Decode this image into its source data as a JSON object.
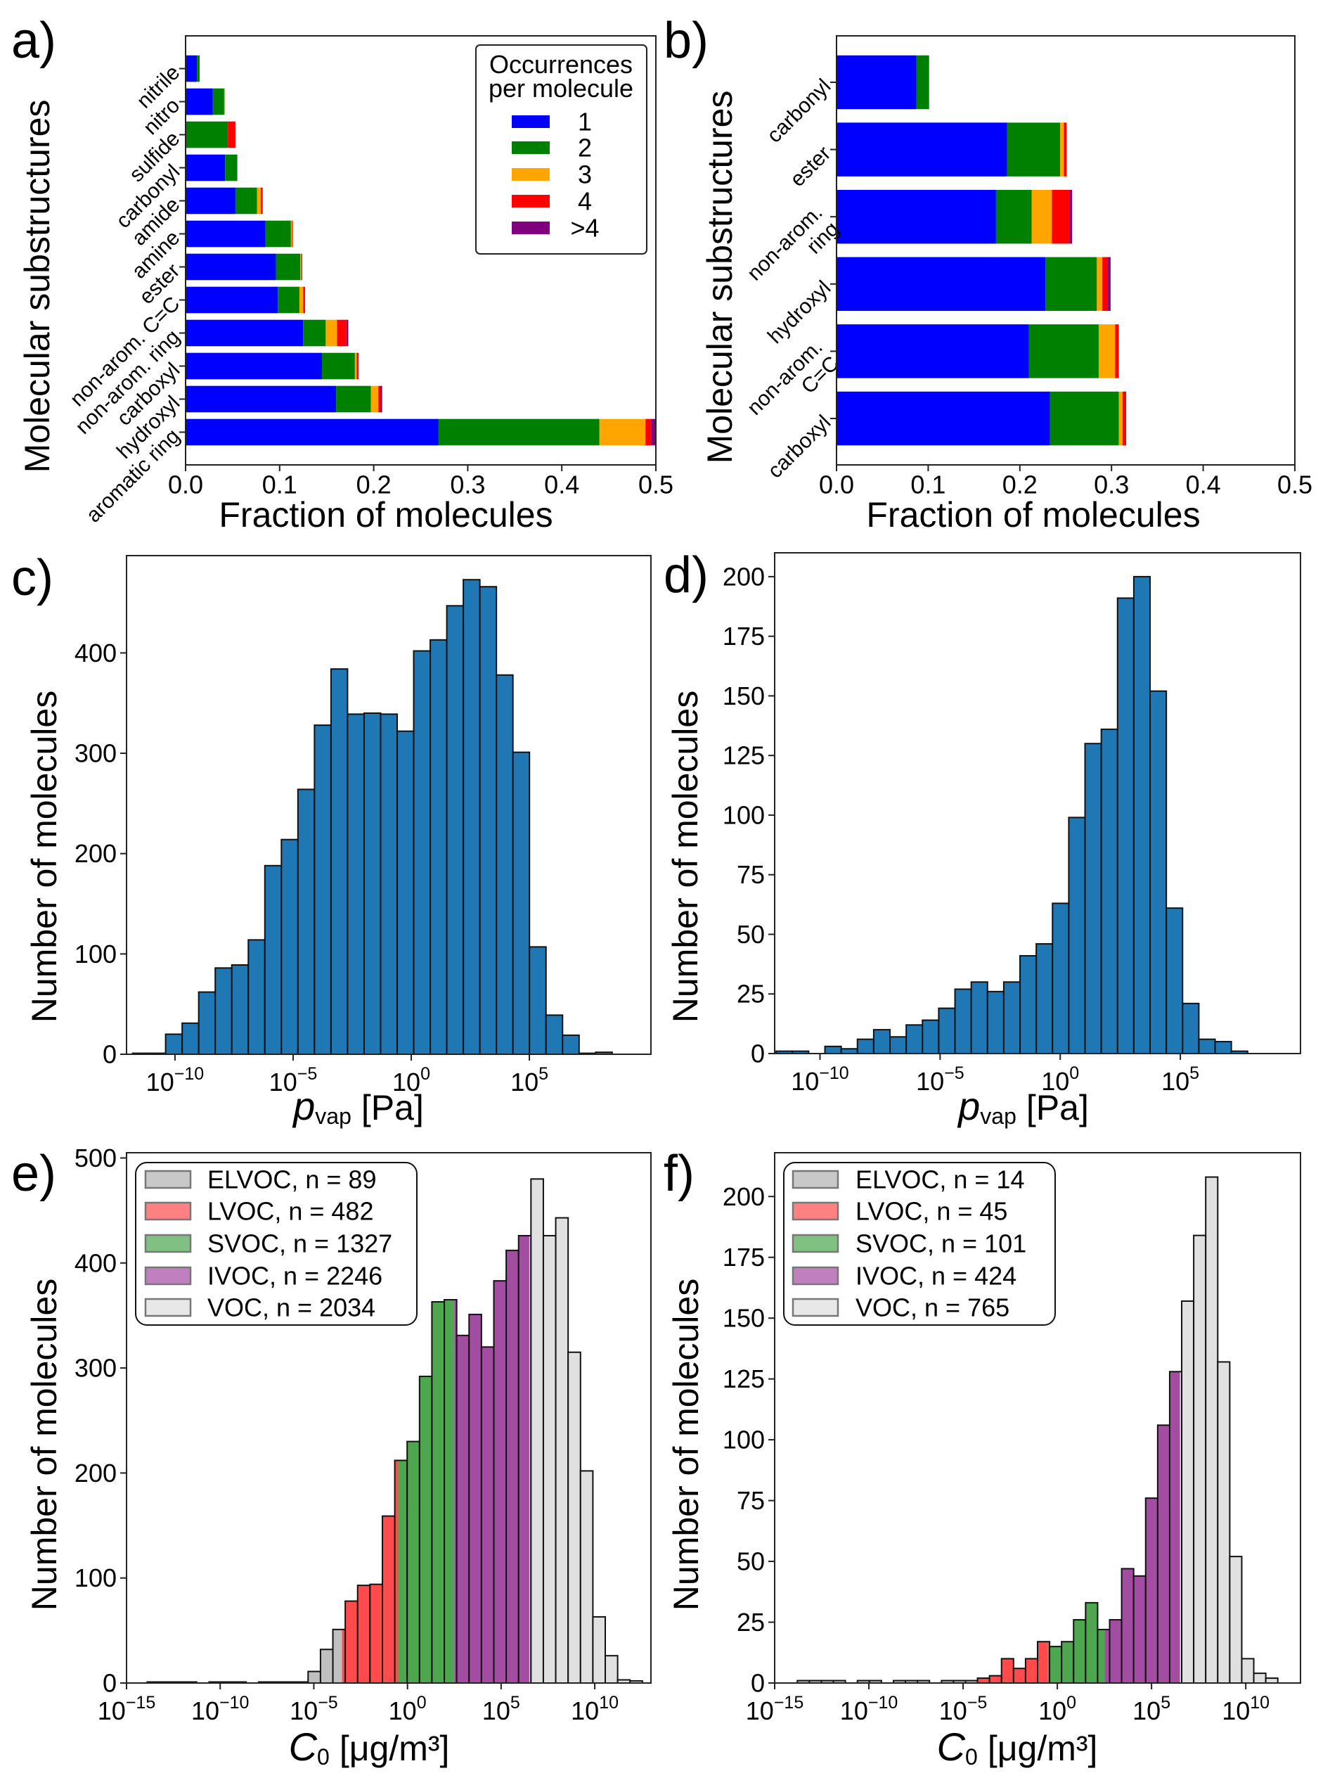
{
  "panel_labels": {
    "a": "a)",
    "b": "b)",
    "c": "c)",
    "d": "d)",
    "e": "e)",
    "f": "f)"
  },
  "chart_data": [
    {
      "panel": "a",
      "type": "bar",
      "orientation": "horizontal",
      "stacked": true,
      "xlabel": "Fraction of molecules",
      "ylabel": "Molecular substructures",
      "xlim": [
        0,
        0.5
      ],
      "xticks": [
        0,
        0.1,
        0.2,
        0.3,
        0.4,
        0.5
      ],
      "xtick_labels": [
        "0.0",
        "0.1",
        "0.2",
        "0.3",
        "0.4",
        "0.5"
      ],
      "grid": false,
      "categories": [
        "nitrile",
        "nitro",
        "sulfide",
        "carbonyl",
        "amide",
        "amine",
        "ester",
        "non-arom.\nC=C",
        "non-arom. ring",
        "carboxyl",
        "hydroxyl",
        "aromatic ring"
      ],
      "legend": {
        "title_lines": [
          "Occurrences",
          "per molecule"
        ],
        "position": "top-right"
      },
      "series": [
        {
          "name": "1",
          "color": "#0000ff",
          "values": [
            0.012,
            0.029,
            0,
            0.042,
            0.053,
            0.085,
            0.096,
            0.098,
            0.125,
            0.145,
            0.16,
            0.269
          ]
        },
        {
          "name": "2",
          "color": "#008000",
          "values": [
            0.003,
            0.012,
            0.045,
            0.013,
            0.023,
            0.027,
            0.026,
            0.023,
            0.024,
            0.035,
            0.037,
            0.171
          ]
        },
        {
          "name": "3",
          "color": "#ffa500",
          "values": [
            0,
            0.001,
            0,
            0,
            0.004,
            0.001,
            0.001,
            0.004,
            0.012,
            0.002,
            0.008,
            0.049
          ]
        },
        {
          "name": "4",
          "color": "#ff0000",
          "values": [
            0,
            0,
            0.008,
            0,
            0.002,
            0.001,
            0.001,
            0.002,
            0.01,
            0.002,
            0.002,
            0.006
          ]
        },
        {
          "name": ">4",
          "color": "#800080",
          "values": [
            0,
            0,
            0,
            0,
            0,
            0,
            0,
            0,
            0.002,
            0,
            0.002,
            0.005
          ]
        }
      ]
    },
    {
      "panel": "b",
      "type": "bar",
      "orientation": "horizontal",
      "stacked": true,
      "xlabel": "Fraction of molecules",
      "ylabel": "Molecular substructures",
      "xlim": [
        0,
        0.5
      ],
      "xticks": [
        0,
        0.1,
        0.2,
        0.3,
        0.4,
        0.5
      ],
      "xtick_labels": [
        "0.0",
        "0.1",
        "0.2",
        "0.3",
        "0.4",
        "0.5"
      ],
      "grid": false,
      "categories": [
        "carbonyl",
        "ester",
        "non-arom.\nring",
        "hydroxyl",
        "non-arom.\nC=C",
        "carboxyl"
      ],
      "series": [
        {
          "color": "#0000ff",
          "values": [
            0.087,
            0.186,
            0.174,
            0.228,
            0.21,
            0.233
          ]
        },
        {
          "color": "#008000",
          "values": [
            0.014,
            0.058,
            0.039,
            0.056,
            0.076,
            0.075
          ]
        },
        {
          "color": "#ffa500",
          "values": [
            0,
            0.004,
            0.022,
            0.006,
            0.018,
            0.004
          ]
        },
        {
          "color": "#ff0000",
          "values": [
            0,
            0.003,
            0.019,
            0.006,
            0.004,
            0.004
          ]
        },
        {
          "color": "#800080",
          "values": [
            0,
            0,
            0.003,
            0.003,
            0,
            0
          ]
        }
      ]
    },
    {
      "panel": "c",
      "type": "bar",
      "subtype": "histogram",
      "x_scale": "log",
      "xlabel": {
        "symbol": "p",
        "subscript": "vap",
        "unit": "[Pa]"
      },
      "ylabel": "Number of molecules",
      "xlim": [
        8.9e-13,
        14000000000.0
      ],
      "ylim": [
        0,
        497
      ],
      "xtick_exponents": [
        -10,
        -5,
        0,
        5
      ],
      "tick_base": "10",
      "yticks": [
        0,
        100,
        200,
        300,
        400
      ],
      "bin_range": [
        1.6e-12,
        320000000.0
      ],
      "bin_spacing": "log",
      "color": "#1f77b4",
      "counts": [
        1,
        1,
        20,
        31,
        62,
        86,
        89,
        114,
        188,
        214,
        264,
        328,
        384,
        339,
        340,
        339,
        322,
        402,
        413,
        447,
        473,
        466,
        378,
        301,
        107,
        39,
        19,
        1,
        2
      ]
    },
    {
      "panel": "d",
      "type": "bar",
      "subtype": "histogram",
      "x_scale": "log",
      "xlabel": {
        "symbol": "p",
        "subscript": "vap",
        "unit": "[Pa]"
      },
      "ylabel": "Number of molecules",
      "xlim": [
        1.3e-12,
        10000000000.0
      ],
      "ylim": [
        0,
        210
      ],
      "xtick_exponents": [
        -10,
        -5,
        0,
        5
      ],
      "tick_base": "10",
      "yticks": [
        0,
        25,
        50,
        75,
        100,
        125,
        150,
        175,
        200
      ],
      "bin_range": [
        1.5e-12,
        63000000.0
      ],
      "bin_spacing": "log",
      "color": "#1f77b4",
      "counts": [
        1,
        1,
        0,
        3,
        2,
        6,
        10,
        7,
        12,
        14,
        19,
        27,
        30,
        26,
        30,
        41,
        46,
        63,
        99,
        130,
        136,
        191,
        200,
        152,
        61,
        21,
        6,
        5,
        1
      ]
    },
    {
      "panel": "e",
      "type": "bar",
      "subtype": "histogram",
      "x_scale": "log",
      "xlabel": {
        "symbol": "C",
        "subscript": "0",
        "unit": "[μg/m³]"
      },
      "ylabel": "Number of molecules",
      "xlim": [
        1e-15,
        10000000000000.0
      ],
      "ylim": [
        0,
        505
      ],
      "xtick_exponents": [
        -15,
        -10,
        -5,
        0,
        5,
        10
      ],
      "tick_base": "10",
      "yticks": [
        0,
        100,
        200,
        300,
        400,
        500
      ],
      "bin_range": [
        1.26e-14,
        3500000000000.0
      ],
      "bin_spacing": "log",
      "class_thresholds": [
        0.00032,
        0.32,
        316,
        3200000.0
      ],
      "classes": [
        {
          "label": "ELVOC, n = 89",
          "color": "#c0c0c0",
          "legend_color": "#c8c8c8"
        },
        {
          "label": "LVOC, n = 482",
          "color": "#ff4b4b",
          "legend_color": "#ff8080"
        },
        {
          "label": "SVOC, n = 1327",
          "color": "#4ea64e",
          "legend_color": "#80c080"
        },
        {
          "label": "IVOC, n = 2246",
          "color": "#a24ca2",
          "legend_color": "#c080c0"
        },
        {
          "label": "VOC, n = 2034",
          "color": "#e0e0e0",
          "legend_color": "#e8e8e8"
        }
      ],
      "legend_position": "top-left",
      "counts": [
        1,
        1,
        1,
        1,
        0,
        1,
        1,
        1,
        0,
        1,
        1,
        1,
        1,
        11,
        32,
        51,
        78,
        93,
        94,
        159,
        212,
        230,
        292,
        363,
        365,
        331,
        351,
        320,
        383,
        412,
        426,
        480,
        426,
        443,
        315,
        202,
        63,
        26,
        3,
        2
      ]
    },
    {
      "panel": "f",
      "type": "bar",
      "subtype": "histogram",
      "x_scale": "log",
      "xlabel": {
        "symbol": "C",
        "subscript": "0",
        "unit": "[μg/m³]"
      },
      "ylabel": "Number of molecules",
      "xlim": [
        1e-15,
        8000000000000.0
      ],
      "ylim": [
        0,
        218
      ],
      "xtick_exponents": [
        -15,
        -10,
        -5,
        0,
        5,
        10
      ],
      "tick_base": "10",
      "yticks": [
        0,
        25,
        50,
        75,
        100,
        125,
        150,
        175,
        200
      ],
      "bin_range": [
        1.6e-14,
        500000000000.0
      ],
      "bin_spacing": "log",
      "class_thresholds": [
        6.3e-05,
        0.32,
        316,
        3200000.0
      ],
      "classes": [
        {
          "label": "ELVOC, n = 14",
          "color": "#c0c0c0",
          "legend_color": "#c8c8c8"
        },
        {
          "label": "LVOC, n = 45",
          "color": "#ff4b4b",
          "legend_color": "#ff8080"
        },
        {
          "label": "SVOC, n = 101",
          "color": "#4ea64e",
          "legend_color": "#80c080"
        },
        {
          "label": "IVOC, n = 424",
          "color": "#a24ca2",
          "legend_color": "#c080c0"
        },
        {
          "label": "VOC, n = 765",
          "color": "#e0e0e0",
          "legend_color": "#e8e8e8"
        }
      ],
      "legend_position": "top-left",
      "counts": [
        1,
        1,
        1,
        1,
        0,
        1,
        1,
        0,
        1,
        1,
        1,
        0,
        1,
        1,
        1,
        2,
        3,
        10,
        6,
        10,
        17,
        15,
        17,
        26,
        33,
        22,
        26,
        47,
        44,
        76,
        106,
        128,
        157,
        184,
        208,
        132,
        52,
        10,
        4,
        2
      ]
    }
  ]
}
